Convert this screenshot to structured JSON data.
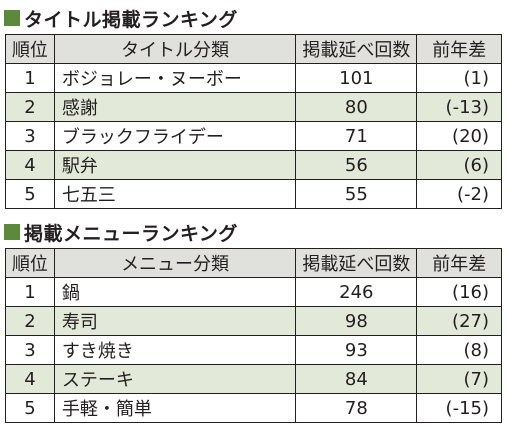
{
  "title_ranking": {
    "heading": "タイトル掲載ランキング",
    "columns": [
      "順位",
      "タイトル分類",
      "掲載延べ回数",
      "前年差"
    ],
    "rows": [
      {
        "rank": "1",
        "name": "ボジョレー・ヌーボー",
        "count": "101",
        "diff": "(1)"
      },
      {
        "rank": "2",
        "name": "感謝",
        "count": "80",
        "diff": "(-13)"
      },
      {
        "rank": "3",
        "name": "ブラックフライデー",
        "count": "71",
        "diff": "(20)"
      },
      {
        "rank": "4",
        "name": "駅弁",
        "count": "56",
        "diff": "(6)"
      },
      {
        "rank": "5",
        "name": "七五三",
        "count": "55",
        "diff": "(-2)"
      }
    ]
  },
  "menu_ranking": {
    "heading": "掲載メニューランキング",
    "columns": [
      "順位",
      "メニュー分類",
      "掲載延べ回数",
      "前年差"
    ],
    "rows": [
      {
        "rank": "1",
        "name": "鍋",
        "count": "246",
        "diff": "(16)"
      },
      {
        "rank": "2",
        "name": "寿司",
        "count": "98",
        "diff": "(27)"
      },
      {
        "rank": "3",
        "name": "すき焼き",
        "count": "93",
        "diff": "(8)"
      },
      {
        "rank": "4",
        "name": "ステーキ",
        "count": "84",
        "diff": "(7)"
      },
      {
        "rank": "5",
        "name": "手軽・簡単",
        "count": "78",
        "diff": "(-15)"
      }
    ]
  },
  "colors": {
    "heading_marker": "#5c8a3a",
    "header_bg": "#e0e0dc",
    "stripe_bg": "#e3e9d8"
  }
}
